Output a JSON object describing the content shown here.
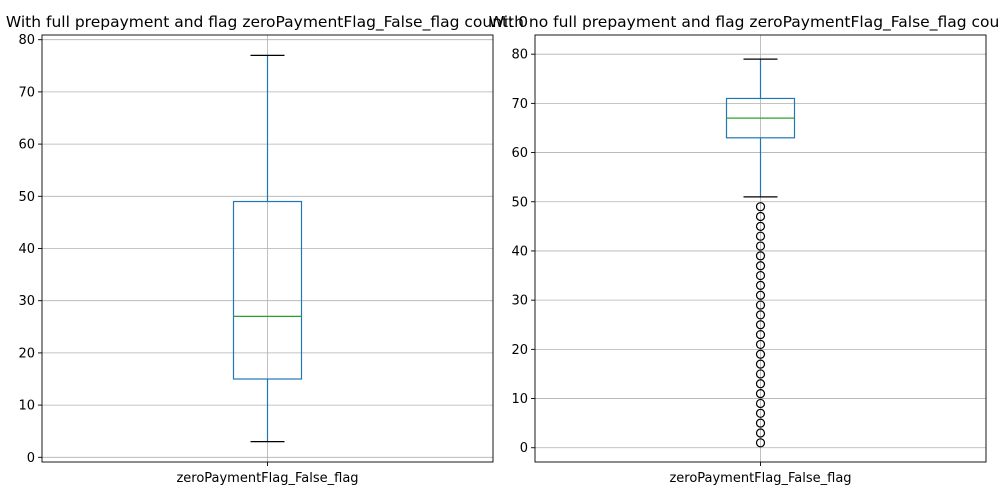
{
  "chart_data": [
    {
      "type": "box",
      "title": "With full prepayment and flag zeroPaymentFlag_False_flag count: 0",
      "categories": [
        "zeroPaymentFlag_False_flag"
      ],
      "ylim": [
        -0.9,
        80.9
      ],
      "yticks": [
        0,
        10,
        20,
        30,
        40,
        50,
        60,
        70,
        80
      ],
      "grid": true,
      "box": {
        "whisker_low": 3,
        "q1": 15,
        "median": 27,
        "q3": 49,
        "whisker_high": 77
      },
      "outliers": []
    },
    {
      "type": "box",
      "title": "With no full prepayment and flag zeroPaymentFlag_False_flag count: 0",
      "categories": [
        "zeroPaymentFlag_False_flag"
      ],
      "ylim": [
        -2.9,
        83.9
      ],
      "yticks": [
        0,
        10,
        20,
        30,
        40,
        50,
        60,
        70,
        80
      ],
      "grid": true,
      "box": {
        "whisker_low": 51,
        "q1": 63,
        "median": 67,
        "q3": 71,
        "whisker_high": 79
      },
      "outliers": [
        1,
        3,
        5,
        7,
        9,
        11,
        13,
        15,
        17,
        19,
        21,
        23,
        25,
        27,
        29,
        31,
        33,
        35,
        37,
        39,
        41,
        43,
        45,
        47,
        49
      ]
    }
  ],
  "colors": {
    "box": "#1f77b4",
    "median": "#2ca02c",
    "grid": "#b0b0b0",
    "axis": "#000000"
  }
}
